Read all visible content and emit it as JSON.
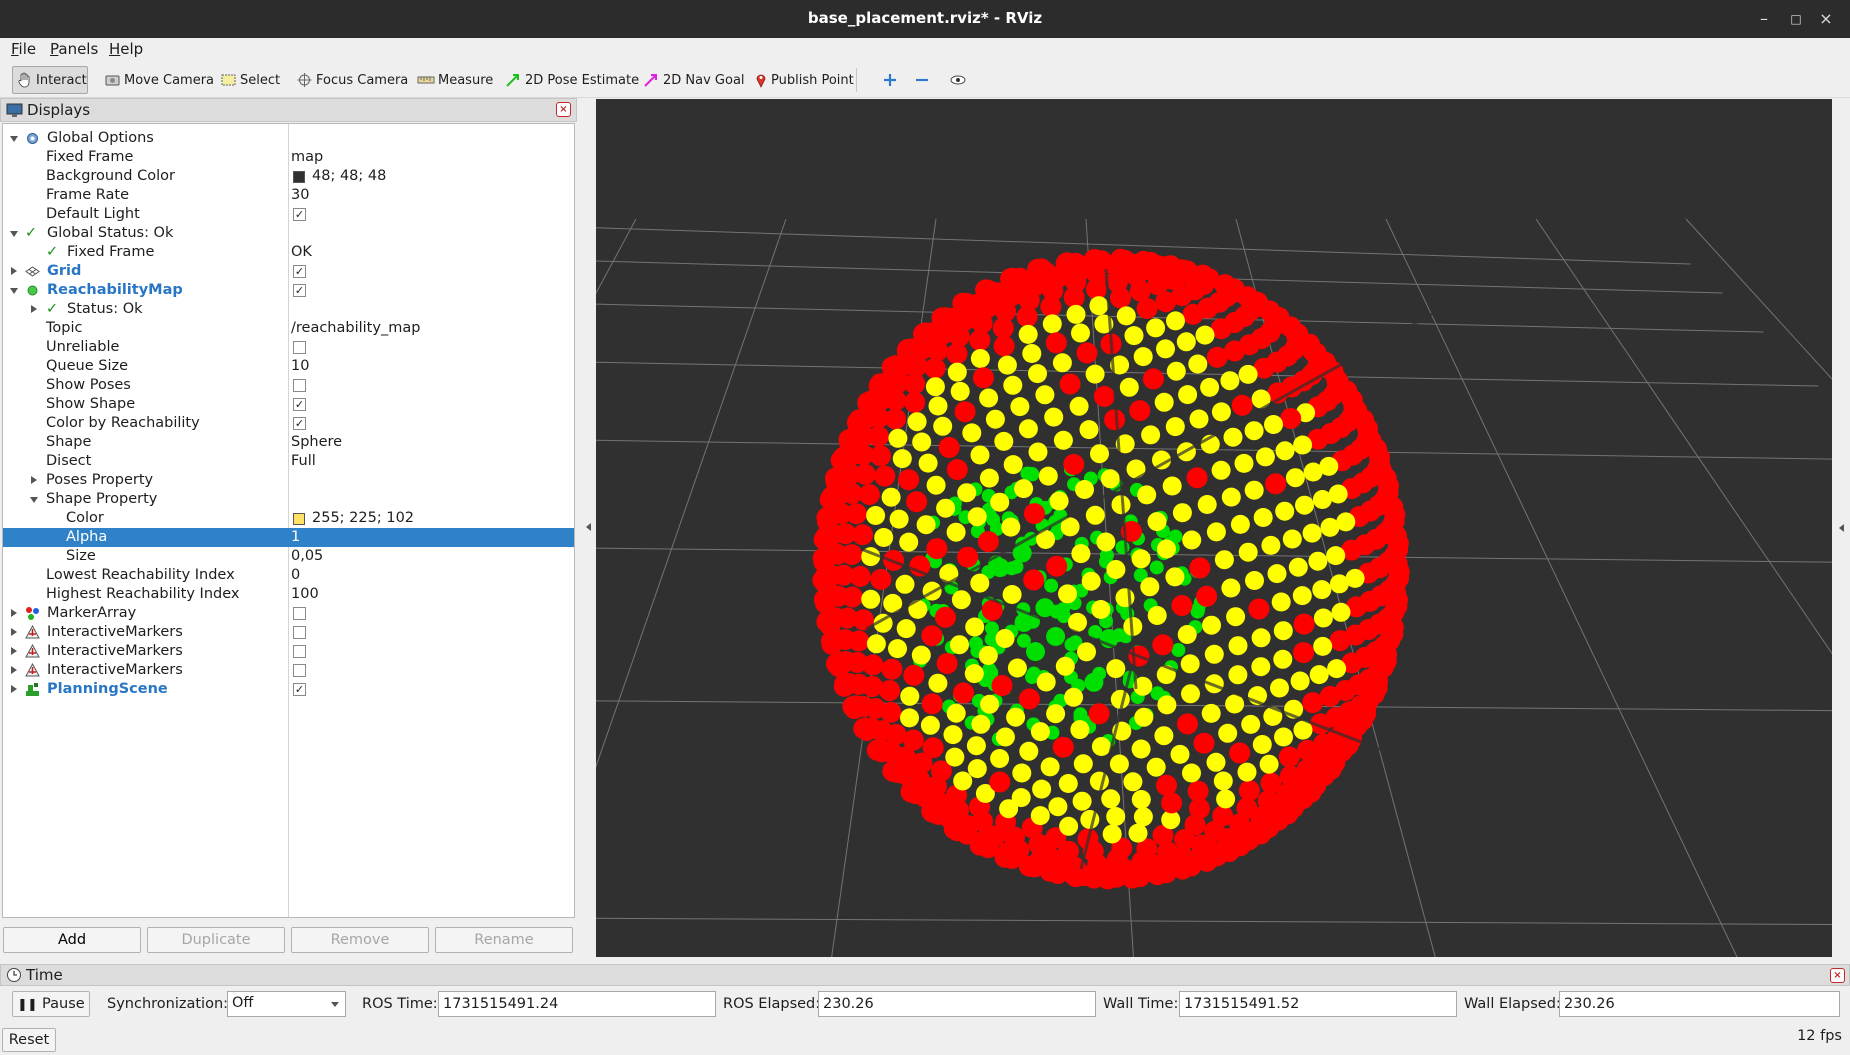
{
  "window": {
    "title": "base_placement.rviz* - RViz"
  },
  "menu": [
    "File",
    "Panels",
    "Help"
  ],
  "toolbar": {
    "interact": "Interact",
    "move_camera": "Move Camera",
    "select": "Select",
    "focus_camera": "Focus Camera",
    "measure": "Measure",
    "pose_estimate": "2D Pose Estimate",
    "nav_goal": "2D Nav Goal",
    "publish_point": "Publish Point"
  },
  "displays_panel": {
    "title": "Displays",
    "rows": [
      {
        "name": "Global Options",
        "value": ""
      },
      {
        "name": "Fixed Frame",
        "value": "map"
      },
      {
        "name": "Background Color",
        "value": "48; 48; 48",
        "swatch": "#303030"
      },
      {
        "name": "Frame Rate",
        "value": "30"
      },
      {
        "name": "Default Light",
        "checked": true
      },
      {
        "name": "Global Status: Ok",
        "value": ""
      },
      {
        "name": "Fixed Frame",
        "value": "OK"
      },
      {
        "name": "Grid",
        "checked": true
      },
      {
        "name": "ReachabilityMap",
        "checked": true
      },
      {
        "name": "Status: Ok",
        "value": ""
      },
      {
        "name": "Topic",
        "value": "/reachability_map"
      },
      {
        "name": "Unreliable",
        "checked": false
      },
      {
        "name": "Queue Size",
        "value": "10"
      },
      {
        "name": "Show Poses",
        "checked": false
      },
      {
        "name": "Show Shape",
        "checked": true
      },
      {
        "name": "Color by Reachability",
        "checked": true
      },
      {
        "name": "Shape",
        "value": "Sphere"
      },
      {
        "name": "Disect",
        "value": "Full"
      },
      {
        "name": "Poses Property",
        "value": ""
      },
      {
        "name": "Shape Property",
        "value": ""
      },
      {
        "name": "Color",
        "value": "255; 225; 102",
        "swatch": "#ffe166"
      },
      {
        "name": "Alpha",
        "value": "1"
      },
      {
        "name": "Size",
        "value": "0,05"
      },
      {
        "name": "Lowest Reachability Index",
        "value": "0"
      },
      {
        "name": "Highest Reachability Index",
        "value": "100"
      },
      {
        "name": "MarkerArray",
        "checked": false
      },
      {
        "name": "InteractiveMarkers",
        "checked": false
      },
      {
        "name": "InteractiveMarkers",
        "checked": false
      },
      {
        "name": "InteractiveMarkers",
        "checked": false
      },
      {
        "name": "PlanningScene",
        "checked": true
      }
    ],
    "buttons": {
      "add": "Add",
      "duplicate": "Duplicate",
      "remove": "Remove",
      "rename": "Rename"
    }
  },
  "time_panel": {
    "title": "Time",
    "pause": "Pause",
    "sync_label": "Synchronization:",
    "sync_value": "Off",
    "ros_time_label": "ROS Time:",
    "ros_time": "1731515491.24",
    "ros_elapsed_label": "ROS Elapsed:",
    "ros_elapsed": "230.26",
    "wall_time_label": "Wall Time:",
    "wall_time": "1731515491.52",
    "wall_elapsed_label": "Wall Elapsed:",
    "wall_elapsed": "230.26",
    "reset": "Reset",
    "fps": "12 fps"
  },
  "viewport": {
    "background": "#303030",
    "marker_colors": {
      "red": "#ff0000",
      "yellow": "#ffff00",
      "green": "#00e000"
    }
  }
}
